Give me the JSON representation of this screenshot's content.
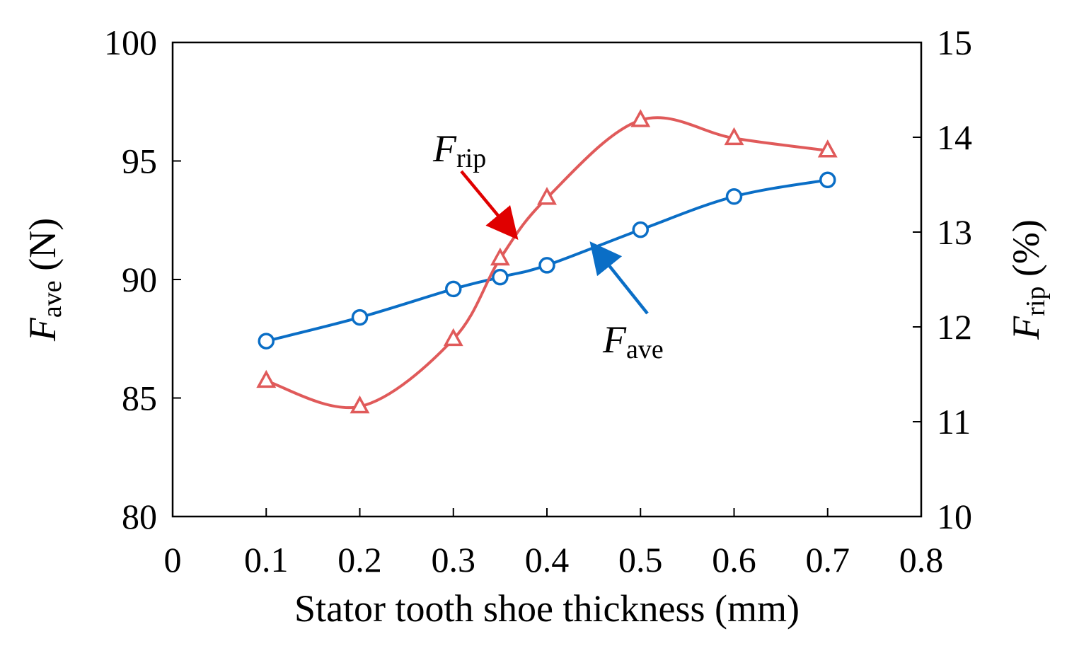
{
  "chart_data": {
    "type": "line",
    "xlabel": "Stator tooth shoe thickness (mm)",
    "xlim": [
      0,
      0.8
    ],
    "xticks": [
      "0",
      "0.1",
      "0.2",
      "0.3",
      "0.4",
      "0.5",
      "0.6",
      "0.7",
      "0.8"
    ],
    "ylabel_left": {
      "main": "F",
      "sub": "ave",
      "unit": " (N)"
    },
    "ylim_left": [
      80,
      100
    ],
    "yticks_left": [
      "80",
      "85",
      "90",
      "95",
      "100"
    ],
    "ylabel_right": {
      "main": "F",
      "sub": "rip",
      "unit": " (%)"
    },
    "ylim_right": [
      10,
      15
    ],
    "yticks_right": [
      "10",
      "11",
      "12",
      "13",
      "14",
      "15"
    ],
    "grid": false,
    "series": [
      {
        "axis": "left",
        "marker": "circle",
        "color": "#0a6ec6",
        "x": [
          0.1,
          0.2,
          0.3,
          0.35,
          0.4,
          0.5,
          0.6,
          0.7
        ],
        "y": [
          87.4,
          88.4,
          89.6,
          90.1,
          90.6,
          92.1,
          93.5,
          94.2
        ]
      },
      {
        "axis": "right",
        "marker": "triangle",
        "color": "#e05a5a",
        "x": [
          0.1,
          0.2,
          0.3,
          0.35,
          0.4,
          0.5,
          0.6,
          0.7
        ],
        "y": [
          11.43,
          11.16,
          11.87,
          12.72,
          13.36,
          14.18,
          13.99,
          13.86
        ]
      }
    ],
    "annotations": [
      {
        "main": "F",
        "sub": "rip",
        "series": 1,
        "arrow_color": "#e00000",
        "at": [
          0.365,
          12.97
        ]
      },
      {
        "main": "F",
        "sub": "ave",
        "series": 0,
        "arrow_color": "#0a6ec6",
        "at": [
          0.45,
          91.4
        ]
      }
    ]
  }
}
